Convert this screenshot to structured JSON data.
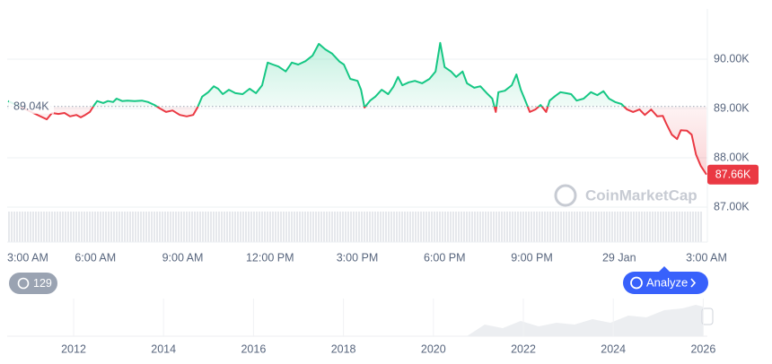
{
  "chart_data": {
    "type": "line",
    "x": [
      0,
      1.33,
      1.51,
      1.73,
      1.94,
      2.13,
      2.35,
      2.5,
      2.65,
      2.81,
      2.96,
      3.06,
      3.27,
      3.43,
      3.61,
      3.73,
      3.92,
      4.1,
      4.35,
      4.6,
      4.81,
      5.03,
      5.22,
      5.43,
      5.65,
      5.9,
      6.14,
      6.36,
      6.51,
      6.67,
      6.88,
      7.07,
      7.22,
      7.38,
      7.59,
      7.81,
      8.06,
      8.3,
      8.52,
      8.73,
      8.92,
      9.1,
      9.29,
      9.54,
      9.75,
      9.97,
      10.22,
      10.46,
      10.68,
      10.9,
      11.14,
      11.39,
      11.54,
      11.76,
      12.01,
      12.13,
      12.25,
      12.44,
      12.62,
      12.84,
      13.06,
      13.24,
      13.4,
      13.55,
      13.77,
      13.98,
      14.23,
      14.48,
      14.69,
      14.85,
      15,
      15.22,
      15.4,
      15.62,
      15.77,
      16.02,
      16.23,
      16.45,
      16.64,
      16.76,
      16.85,
      17.07,
      17.31,
      17.47,
      17.62,
      17.78,
      17.93,
      18.12,
      18.3,
      18.49,
      18.61,
      18.8,
      18.98,
      19.17,
      19.35,
      19.54,
      19.78,
      20.03,
      20.25,
      20.46,
      20.65,
      20.86,
      21.08,
      21.27,
      21.48,
      21.7,
      21.88,
      22.1,
      22.31,
      22.5,
      22.62,
      22.81,
      22.99,
      23.12,
      23.33,
      23.49,
      23.64,
      23.8,
      24
    ],
    "values": [
      89150,
      88780,
      88910,
      88890,
      88910,
      88840,
      88870,
      88820,
      88870,
      88930,
      89070,
      89150,
      89110,
      89150,
      89130,
      89200,
      89150,
      89160,
      89150,
      89160,
      89130,
      89070,
      89000,
      88930,
      88960,
      88870,
      88840,
      88870,
      89020,
      89240,
      89330,
      89450,
      89400,
      89290,
      89380,
      89310,
      89290,
      89400,
      89310,
      89470,
      89930,
      89890,
      89850,
      89750,
      89930,
      89890,
      89960,
      90070,
      90310,
      90200,
      90110,
      89950,
      89890,
      89600,
      89560,
      89380,
      89020,
      89160,
      89240,
      89380,
      89290,
      89440,
      89640,
      89470,
      89530,
      89560,
      89510,
      89600,
      89750,
      90330,
      89840,
      89750,
      89640,
      89750,
      89510,
      89420,
      89450,
      89310,
      89200,
      88930,
      89330,
      89360,
      89470,
      89690,
      89380,
      89150,
      88930,
      88980,
      89070,
      88930,
      89160,
      89250,
      89330,
      89310,
      89290,
      89160,
      89200,
      89330,
      89270,
      89350,
      89200,
      89130,
      89090,
      88980,
      88930,
      88980,
      88870,
      88980,
      88840,
      88850,
      88690,
      88470,
      88380,
      88560,
      88550,
      88470,
      88070,
      87840,
      87660
    ],
    "up_color": "#16c784",
    "down_color": "#ea3943",
    "xlim": [
      0,
      24
    ],
    "xticks": [
      {
        "value": 0,
        "label": "3:00 AM"
      },
      {
        "value": 3,
        "label": "6:00 AM"
      },
      {
        "value": 6,
        "label": "9:00 AM"
      },
      {
        "value": 9,
        "label": "12:00 PM"
      },
      {
        "value": 12,
        "label": "3:00 PM"
      },
      {
        "value": 15,
        "label": "6:00 PM"
      },
      {
        "value": 18,
        "label": "9:00 PM"
      },
      {
        "value": 21,
        "label": "29 Jan"
      },
      {
        "value": 24,
        "label": "3:00 AM"
      }
    ],
    "ylim": [
      86982,
      91018
    ],
    "yticks": [
      {
        "value": 87000,
        "label": "87.00K"
      },
      {
        "value": 88000,
        "label": "88.00K"
      },
      {
        "value": 89000,
        "label": "89.00K"
      },
      {
        "value": 90000,
        "label": "90.00K"
      }
    ],
    "grid": true,
    "baseline": {
      "value": 89040,
      "label": "89.04K"
    },
    "last_price": {
      "value": 87660,
      "label": "87.66K"
    }
  },
  "watermark": "CoinMarketCap",
  "badge": "129",
  "button": "Analyze",
  "navigator_years": [
    "2012",
    "2014",
    "2016",
    "2018",
    "2020",
    "2022",
    "2024",
    "2026"
  ]
}
